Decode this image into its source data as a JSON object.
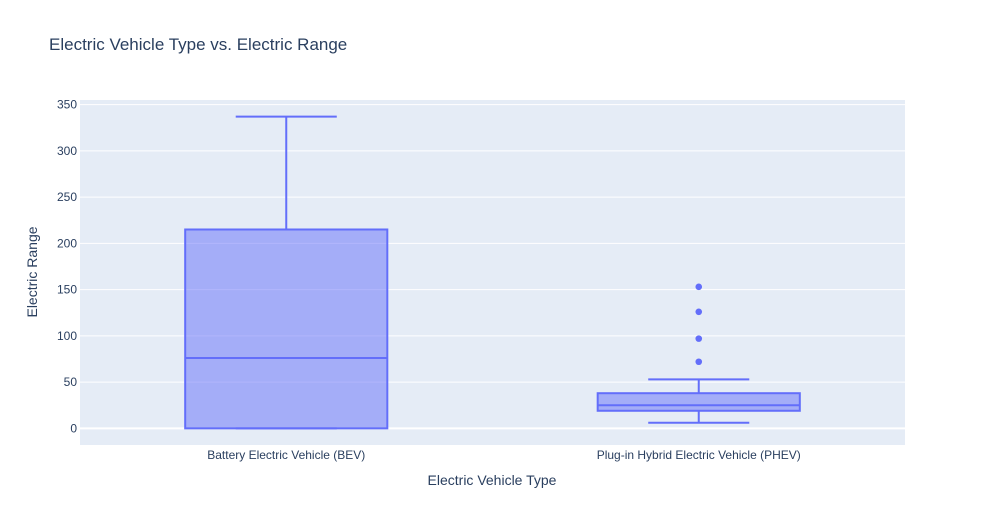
{
  "chart_data": {
    "type": "box",
    "title": "Electric Vehicle Type vs. Electric Range",
    "xlabel": "Electric Vehicle Type",
    "ylabel": "Electric Range",
    "ylim": [
      -18,
      355
    ],
    "yticks": [
      0,
      50,
      100,
      150,
      200,
      250,
      300,
      350
    ],
    "grid": true,
    "categories": [
      "Battery Electric Vehicle (BEV)",
      "Plug-in Hybrid Electric Vehicle (PHEV)"
    ],
    "boxes": [
      {
        "category": "Battery Electric Vehicle (BEV)",
        "lower_whisker": 0,
        "q1": 0,
        "median": 76,
        "q3": 215,
        "upper_whisker": 337,
        "outliers": []
      },
      {
        "category": "Plug-in Hybrid Electric Vehicle (PHEV)",
        "lower_whisker": 6,
        "q1": 19,
        "median": 25,
        "q3": 38,
        "upper_whisker": 53,
        "outliers": [
          72,
          97,
          126,
          153
        ]
      }
    ],
    "colors": {
      "box_fill": "#636efa",
      "box_line": "#636efa",
      "plot_bg": "#e5ecf6",
      "grid": "#ffffff",
      "text": "#2a3f5f"
    }
  }
}
